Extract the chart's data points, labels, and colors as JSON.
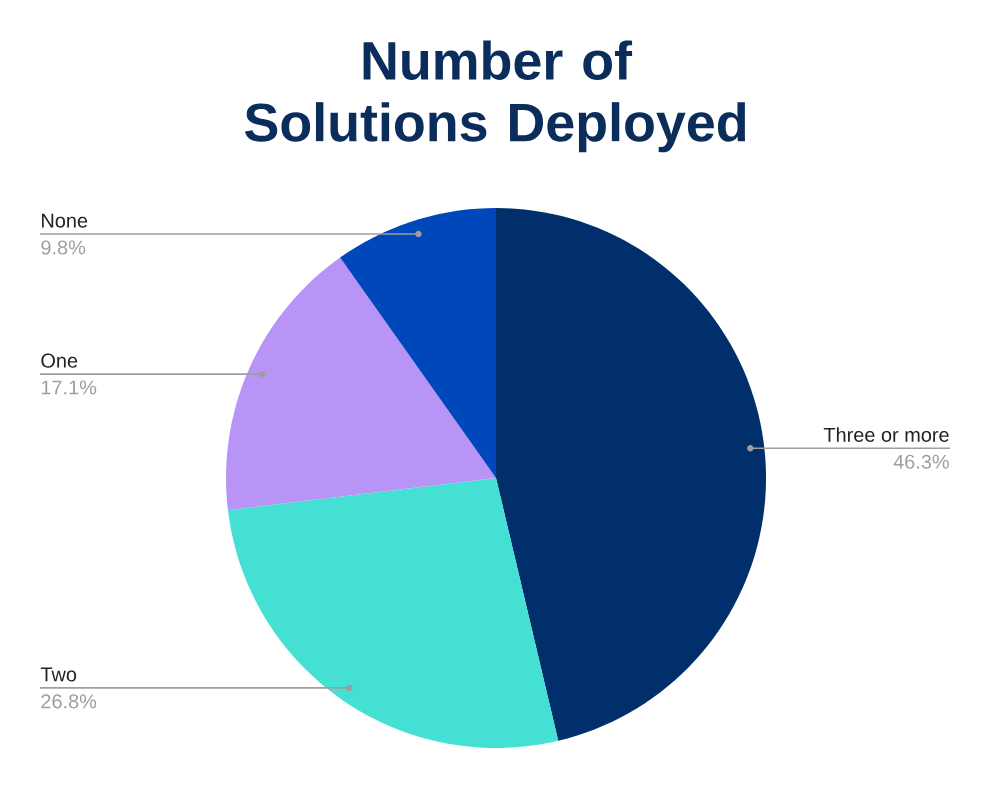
{
  "chart_data": {
    "type": "pie",
    "title": "Number of Solutions Deployed",
    "categories": [
      "Three or more",
      "Two",
      "One",
      "None"
    ],
    "values": [
      46.3,
      26.8,
      17.1,
      9.8
    ],
    "colors": [
      "#002f6c",
      "#45e0d4",
      "#b794f6",
      "#0047bb"
    ],
    "value_labels": [
      "46.3%",
      "26.8%",
      "17.1%",
      "9.8%"
    ]
  }
}
